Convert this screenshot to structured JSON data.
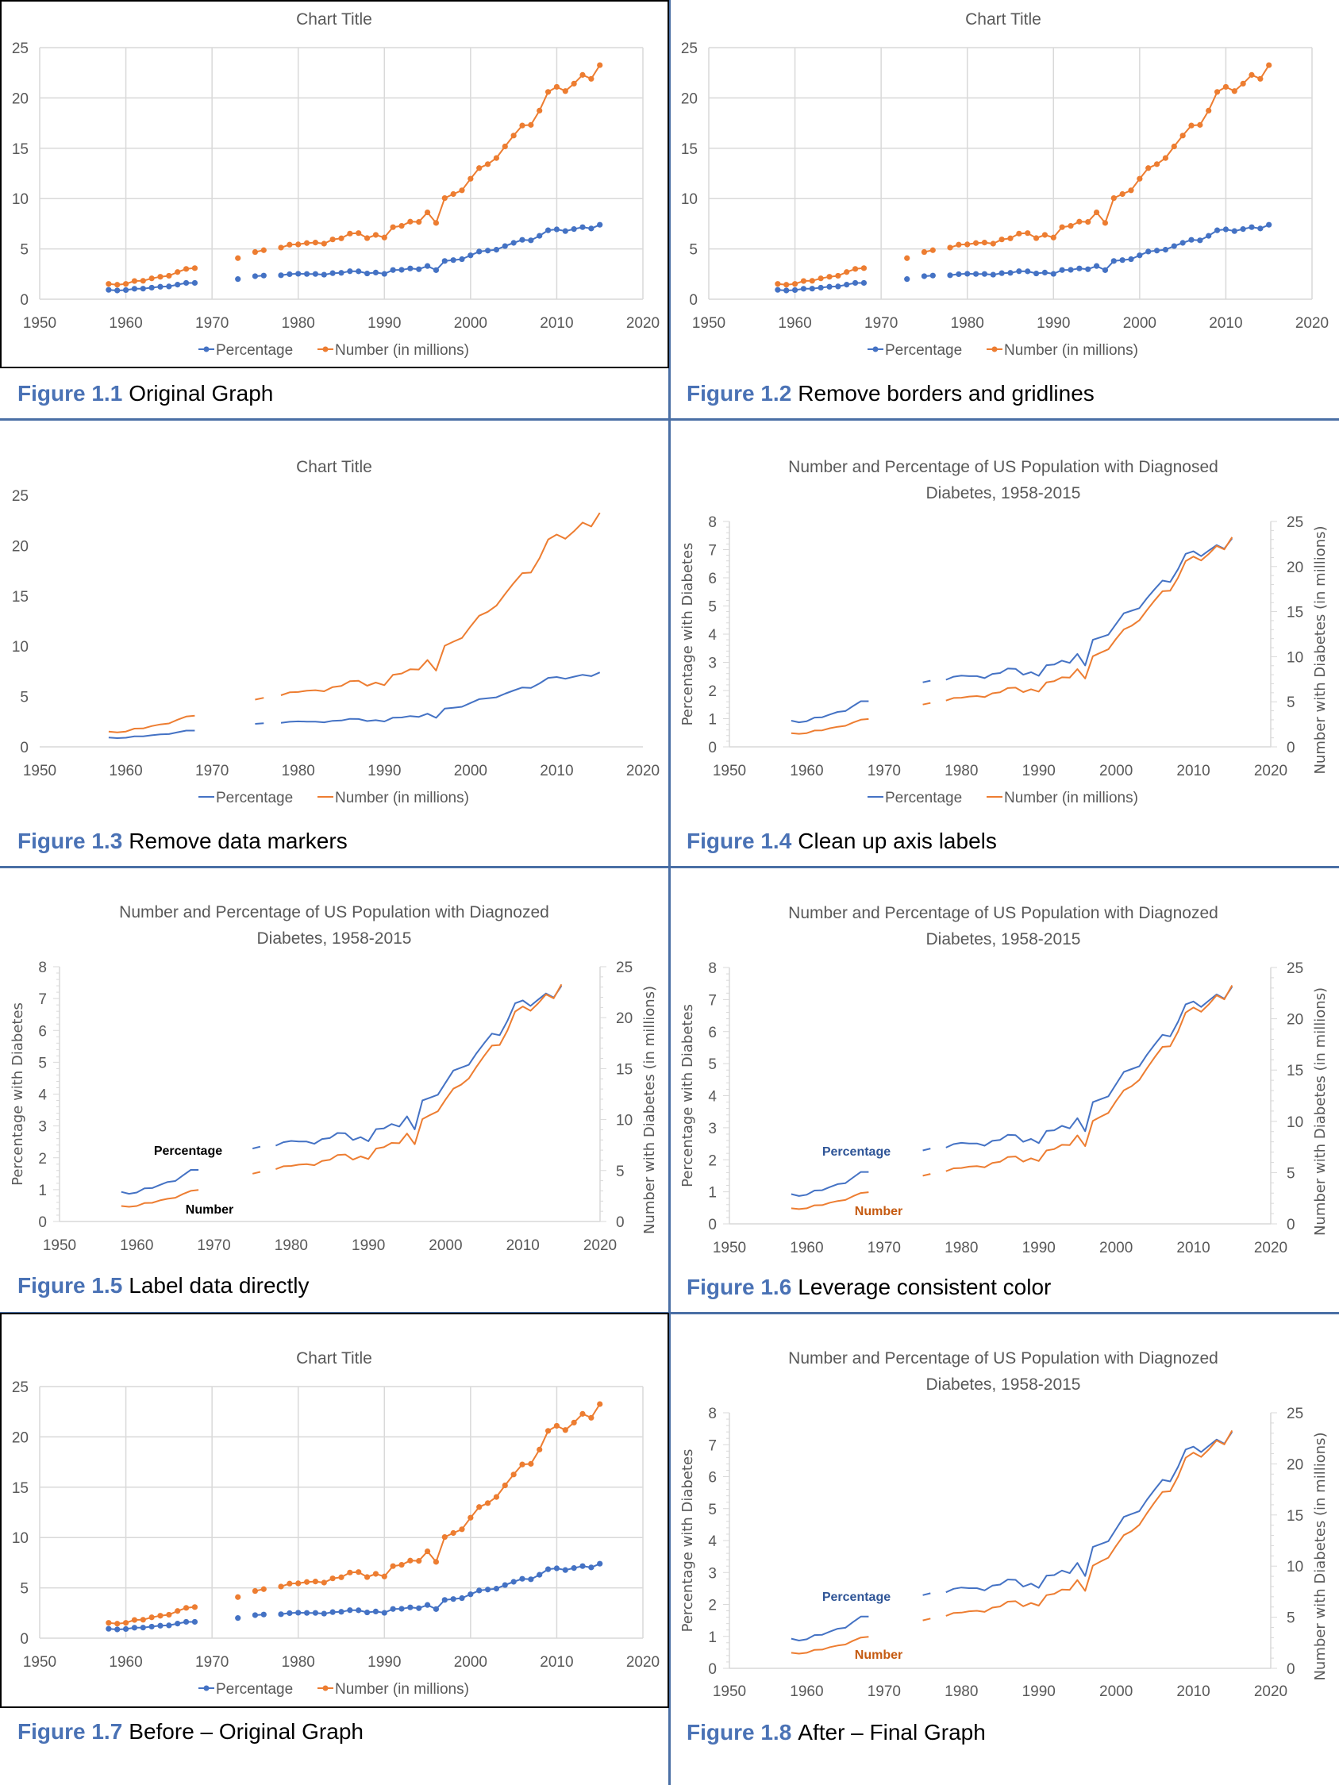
{
  "colors": {
    "percentage": "#4472C4",
    "number": "#ED7D31",
    "figure_label": "#4A72B5",
    "divider": "#4A6FA5",
    "label_percentage": "#2F5597",
    "label_number": "#C55A11"
  },
  "panels": [
    {
      "figure": "Figure 1.1",
      "caption": "Original Graph"
    },
    {
      "figure": "Figure 1.2",
      "caption": "Remove borders and gridlines"
    },
    {
      "figure": "Figure 1.3",
      "caption": "Remove data markers"
    },
    {
      "figure": "Figure 1.4",
      "caption": "Clean up axis labels"
    },
    {
      "figure": "Figure 1.5",
      "caption": "Label data directly"
    },
    {
      "figure": "Figure 1.6",
      "caption": "Leverage consistent color"
    },
    {
      "figure": "Figure 1.7",
      "caption": "Before – Original Graph"
    },
    {
      "figure": "Figure 1.8",
      "caption": "After – Final Graph"
    }
  ],
  "chart_data": [
    {
      "type": "line",
      "title": "Chart Title",
      "dual_axis": false,
      "markers": true,
      "gridlines": true,
      "border": true,
      "legend": "bottom",
      "direct_labels": null,
      "xlim": [
        1950,
        2020
      ],
      "xticks": [
        1950,
        1960,
        1970,
        1980,
        1990,
        2000,
        2010,
        2020
      ],
      "ylim": [
        0,
        25
      ],
      "yticks": [
        0,
        5,
        10,
        15,
        20,
        25
      ],
      "legend_entries": [
        "Percentage",
        "Number (in millions)"
      ]
    },
    {
      "type": "line",
      "title": "Chart Title",
      "dual_axis": false,
      "markers": true,
      "gridlines": true,
      "border": false,
      "legend": "bottom",
      "direct_labels": null,
      "xlim": [
        1950,
        2020
      ],
      "xticks": [
        1950,
        1960,
        1970,
        1980,
        1990,
        2000,
        2010,
        2020
      ],
      "ylim": [
        0,
        25
      ],
      "yticks": [
        0,
        5,
        10,
        15,
        20,
        25
      ],
      "legend_entries": [
        "Percentage",
        "Number (in millions)"
      ]
    },
    {
      "type": "line",
      "title": "Chart Title",
      "dual_axis": false,
      "markers": false,
      "gridlines": false,
      "border": false,
      "legend": "bottom",
      "direct_labels": null,
      "xlim": [
        1950,
        2020
      ],
      "xticks": [
        1950,
        1960,
        1970,
        1980,
        1990,
        2000,
        2010,
        2020
      ],
      "ylim": [
        0,
        25
      ],
      "yticks": [
        0,
        5,
        10,
        15,
        20,
        25
      ],
      "legend_entries": [
        "Percentage",
        "Number (in millions)"
      ]
    },
    {
      "type": "line",
      "title": "Number and Percentage of US Population with Diagnosed Diabetes, 1958-2015",
      "title_lines": [
        "Number and Percentage of US Population with Diagnosed",
        "Diabetes, 1958-2015"
      ],
      "dual_axis": true,
      "markers": false,
      "gridlines": false,
      "border": false,
      "legend": "bottom",
      "direct_labels": null,
      "xlim": [
        1950,
        2020
      ],
      "xticks": [
        1950,
        1960,
        1970,
        1980,
        1990,
        2000,
        2010,
        2020
      ],
      "ylim": [
        0,
        8
      ],
      "yticks": [
        0,
        1,
        2,
        3,
        4,
        5,
        6,
        7,
        8
      ],
      "y2lim": [
        0,
        25
      ],
      "y2ticks": [
        0,
        5,
        10,
        15,
        20,
        25
      ],
      "ylabel": "Percentage with Diabetes",
      "y2label": "Number with Diabetes (in millions)",
      "legend_entries": [
        "Percentage",
        "Number (in millions)"
      ]
    },
    {
      "type": "line",
      "title": "Number and Percentage of US Population with Diagnozed Diabetes, 1958-2015",
      "title_lines": [
        "Number and Percentage of US Population with Diagnozed",
        "Diabetes, 1958-2015"
      ],
      "dual_axis": true,
      "markers": false,
      "gridlines": false,
      "border": false,
      "legend": "none",
      "direct_labels": "black",
      "xlim": [
        1950,
        2020
      ],
      "xticks": [
        1950,
        1960,
        1970,
        1980,
        1990,
        2000,
        2010,
        2020
      ],
      "ylim": [
        0,
        8
      ],
      "yticks": [
        0,
        1,
        2,
        3,
        4,
        5,
        6,
        7,
        8
      ],
      "y2lim": [
        0,
        25
      ],
      "y2ticks": [
        0,
        5,
        10,
        15,
        20,
        25
      ],
      "ylabel": "Percentage with Diabetes",
      "y2label": "Number with Diabetes (in millions)",
      "label_entries": [
        "Percentage",
        "Number"
      ]
    },
    {
      "type": "line",
      "title": "Number and Percentage of US Population with Diagnozed Diabetes, 1958-2015",
      "title_lines": [
        "Number and Percentage of US Population with Diagnozed",
        "Diabetes, 1958-2015"
      ],
      "dual_axis": true,
      "markers": false,
      "gridlines": false,
      "border": false,
      "legend": "none",
      "direct_labels": "colored",
      "xlim": [
        1950,
        2020
      ],
      "xticks": [
        1950,
        1960,
        1970,
        1980,
        1990,
        2000,
        2010,
        2020
      ],
      "ylim": [
        0,
        8
      ],
      "yticks": [
        0,
        1,
        2,
        3,
        4,
        5,
        6,
        7,
        8
      ],
      "y2lim": [
        0,
        25
      ],
      "y2ticks": [
        0,
        5,
        10,
        15,
        20,
        25
      ],
      "ylabel": "Percentage with Diabetes",
      "y2label": "Number with Diabetes (in millions)",
      "label_entries": [
        "Percentage",
        "Number"
      ]
    },
    {
      "type": "line",
      "title": "Chart Title",
      "dual_axis": false,
      "markers": true,
      "gridlines": true,
      "border": true,
      "legend": "bottom",
      "direct_labels": null,
      "xlim": [
        1950,
        2020
      ],
      "xticks": [
        1950,
        1960,
        1970,
        1980,
        1990,
        2000,
        2010,
        2020
      ],
      "ylim": [
        0,
        25
      ],
      "yticks": [
        0,
        5,
        10,
        15,
        20,
        25
      ],
      "legend_entries": [
        "Percentage",
        "Number (in millions)"
      ]
    },
    {
      "type": "line",
      "title": "Number and Percentage of US Population with Diagnozed Diabetes, 1958-2015",
      "title_lines": [
        "Number and Percentage of US Population with Diagnozed",
        "Diabetes, 1958-2015"
      ],
      "dual_axis": true,
      "markers": false,
      "gridlines": false,
      "border": false,
      "legend": "none",
      "direct_labels": "colored",
      "xlim": [
        1950,
        2020
      ],
      "xticks": [
        1950,
        1960,
        1970,
        1980,
        1990,
        2000,
        2010,
        2020
      ],
      "ylim": [
        0,
        8
      ],
      "yticks": [
        0,
        1,
        2,
        3,
        4,
        5,
        6,
        7,
        8
      ],
      "y2lim": [
        0,
        25
      ],
      "y2ticks": [
        0,
        5,
        10,
        15,
        20,
        25
      ],
      "ylabel": "Percentage with Diabetes",
      "y2label": "Number with Diabetes (in millions)",
      "label_entries": [
        "Percentage",
        "Number"
      ]
    }
  ],
  "series_data": {
    "x": [
      1958,
      1959,
      1960,
      1961,
      1962,
      1963,
      1964,
      1965,
      1966,
      1967,
      1968,
      1969,
      1970,
      1971,
      1972,
      1973,
      1974,
      1975,
      1976,
      1977,
      1978,
      1979,
      1980,
      1981,
      1982,
      1983,
      1984,
      1985,
      1986,
      1987,
      1988,
      1989,
      1990,
      1991,
      1992,
      1993,
      1994,
      1995,
      1996,
      1997,
      1998,
      1999,
      2000,
      2001,
      2002,
      2003,
      2004,
      2005,
      2006,
      2007,
      2008,
      2009,
      2010,
      2011,
      2012,
      2013,
      2014,
      2015
    ],
    "series": [
      {
        "name": "Percentage",
        "axis": "left",
        "values": [
          0.93,
          0.87,
          0.91,
          1.04,
          1.05,
          1.15,
          1.24,
          1.27,
          1.45,
          1.62,
          1.62,
          null,
          null,
          null,
          null,
          2.0,
          null,
          2.29,
          2.35,
          null,
          2.38,
          2.49,
          2.53,
          2.51,
          2.51,
          2.44,
          2.59,
          2.62,
          2.78,
          2.77,
          2.56,
          2.65,
          2.52,
          2.9,
          2.92,
          3.06,
          2.98,
          3.3,
          2.89,
          3.8,
          3.89,
          3.98,
          4.36,
          4.74,
          4.83,
          4.92,
          5.28,
          5.6,
          5.9,
          5.85,
          6.3,
          6.85,
          6.94,
          6.77,
          6.97,
          7.16,
          7.03,
          7.4
        ]
      },
      {
        "name": "Number (in millions)",
        "axis": "right",
        "values": [
          1.52,
          1.44,
          1.52,
          1.81,
          1.83,
          2.07,
          2.23,
          2.33,
          2.7,
          3.01,
          3.09,
          null,
          null,
          null,
          null,
          4.08,
          null,
          4.69,
          4.87,
          null,
          5.13,
          5.42,
          5.45,
          5.58,
          5.63,
          5.52,
          5.94,
          6.05,
          6.52,
          6.57,
          6.07,
          6.39,
          6.13,
          7.16,
          7.29,
          7.71,
          7.68,
          8.63,
          7.58,
          10.05,
          10.45,
          10.82,
          11.97,
          13.03,
          13.42,
          14.03,
          15.18,
          16.26,
          17.26,
          17.32,
          18.74,
          20.6,
          21.1,
          20.68,
          21.42,
          22.29,
          21.9,
          23.26
        ]
      }
    ]
  }
}
